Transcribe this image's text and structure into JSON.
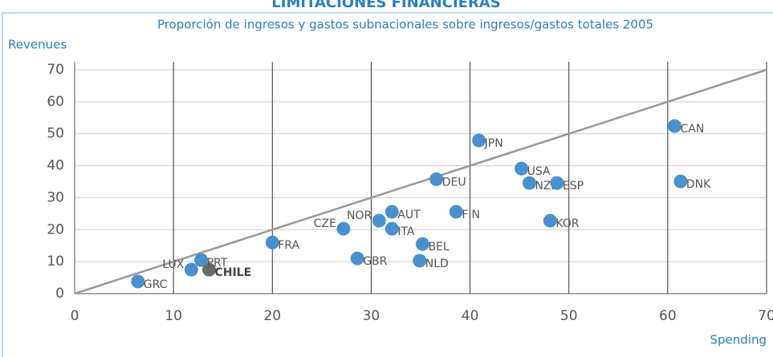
{
  "header": "LIMITACIONES FINANCIERAS",
  "chart_data": {
    "type": "scatter",
    "title": "Proporción de ingresos y gastos subnacionales sobre ingresos/gastos totales 2005",
    "ylabel": "Revenues",
    "xlabel": "Spending",
    "xlim": [
      0,
      70
    ],
    "ylim": [
      0,
      70
    ],
    "xticks": [
      0,
      10,
      20,
      30,
      40,
      50,
      60,
      70
    ],
    "yticks": [
      0,
      10,
      20,
      30,
      40,
      50,
      60,
      70
    ],
    "grid": true,
    "color": "#4a90cc",
    "highlight": "CHILE",
    "highlight_color": "#6b6b6b",
    "points": [
      {
        "label": "GRC",
        "x": 6.4,
        "y": 3.8
      },
      {
        "label": "LUX",
        "x": 11.8,
        "y": 7.5
      },
      {
        "label": "CHILE",
        "x": 13.6,
        "y": 7.5
      },
      {
        "label": "PRT",
        "x": 12.8,
        "y": 10.5
      },
      {
        "label": "FRA",
        "x": 20.0,
        "y": 16.0
      },
      {
        "label": "CZE",
        "x": 27.2,
        "y": 20.3
      },
      {
        "label": "GBR",
        "x": 28.6,
        "y": 11.0
      },
      {
        "label": "NOR",
        "x": 30.8,
        "y": 22.8
      },
      {
        "label": "AUT",
        "x": 32.1,
        "y": 25.6
      },
      {
        "label": "ITA",
        "x": 32.1,
        "y": 20.3
      },
      {
        "label": "BEL",
        "x": 35.2,
        "y": 15.5
      },
      {
        "label": "NLD",
        "x": 34.9,
        "y": 10.3
      },
      {
        "label": "DEU",
        "x": 36.6,
        "y": 35.8
      },
      {
        "label": "FIN",
        "x": 38.6,
        "y": 25.6
      },
      {
        "label": "JPN",
        "x": 40.9,
        "y": 47.9
      },
      {
        "label": "USA",
        "x": 45.2,
        "y": 39.1
      },
      {
        "label": "NZL",
        "x": 46.0,
        "y": 34.6
      },
      {
        "label": "ESP",
        "x": 48.8,
        "y": 34.6
      },
      {
        "label": "KOR",
        "x": 48.1,
        "y": 22.8
      },
      {
        "label": "CAN",
        "x": 60.7,
        "y": 52.4
      },
      {
        "label": "DNK",
        "x": 61.3,
        "y": 35.1
      }
    ]
  }
}
